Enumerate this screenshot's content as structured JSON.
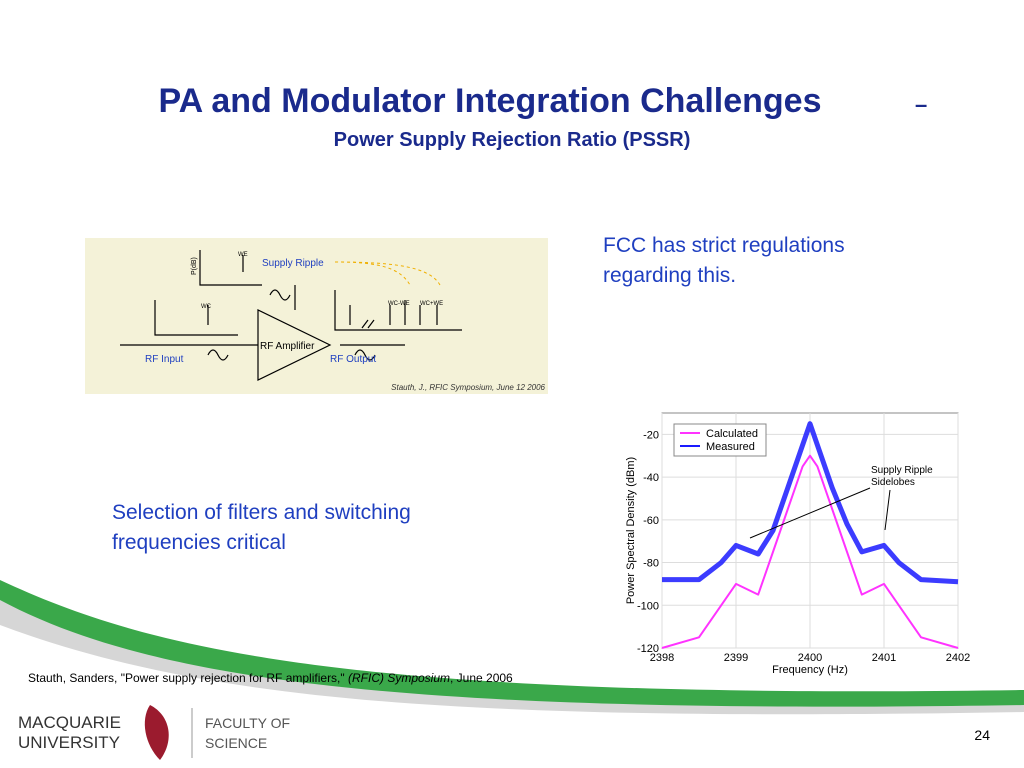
{
  "header": {
    "title": "PA and Modulator Integration Challenges",
    "dash": "–",
    "subtitle": "Power Supply Rejection Ratio (PSSR)"
  },
  "bullets": [
    {
      "lines": [
        "FCC has strict  regulations",
        "regarding this."
      ]
    },
    {
      "lines": [
        "Selection of filters and switching",
        "frequencies critical"
      ]
    }
  ],
  "diagram": {
    "supply_ripple": "Supply Ripple",
    "amplifier": "RF Amplifier",
    "input": "RF Input",
    "output": "RF Output",
    "credit": "Stauth, J., RFIC Symposium, June 12 2006",
    "p_axis": "P(dB)",
    "we": "WE",
    "wc": "WC",
    "wc_minus": "WC-WE",
    "wc_plus": "WC+WE"
  },
  "chart_data": {
    "type": "line",
    "xlabel": "Frequency (Hz)",
    "ylabel": "Power Spectral Density (dBm)",
    "x": [
      2398,
      2398.5,
      2398.8,
      2399,
      2399.3,
      2399.5,
      2399.7,
      2399.9,
      2400,
      2400.1,
      2400.3,
      2400.5,
      2400.7,
      2401,
      2401.2,
      2401.5,
      2402
    ],
    "series": [
      {
        "name": "Calculated",
        "color": "#ff33ff",
        "values": [
          -120,
          -115,
          -100,
          -90,
          -95,
          -75,
          -55,
          -35,
          -30,
          -35,
          -55,
          -75,
          -95,
          -90,
          -100,
          -115,
          -120
        ]
      },
      {
        "name": "Measured",
        "color": "#1a1aff",
        "values": [
          -88,
          -88,
          -80,
          -72,
          -76,
          -65,
          -45,
          -25,
          -15,
          -25,
          -45,
          -62,
          -75,
          -72,
          -80,
          -88,
          -89
        ]
      }
    ],
    "xlim": [
      2398,
      2402
    ],
    "ylim": [
      -120,
      -10
    ],
    "xticks": [
      2398,
      2399,
      2400,
      2401,
      2402
    ],
    "yticks": [
      -120,
      -100,
      -80,
      -60,
      -40,
      -20
    ],
    "grid": true,
    "annotation": {
      "lines": [
        "Supply Ripple",
        "Sidelobes"
      ]
    }
  },
  "citation": {
    "authors": "Stauth, Sanders, \"Power supply rejection for RF amplifiers,\" ",
    "venue": "(RFIC) Symposium",
    "date": ", June 2006"
  },
  "footer": {
    "uni1": "MACQUARIE",
    "uni2": "UNIVERSITY",
    "fac1": "FACULTY OF",
    "fac2": "SCIENCE",
    "page": 24
  }
}
